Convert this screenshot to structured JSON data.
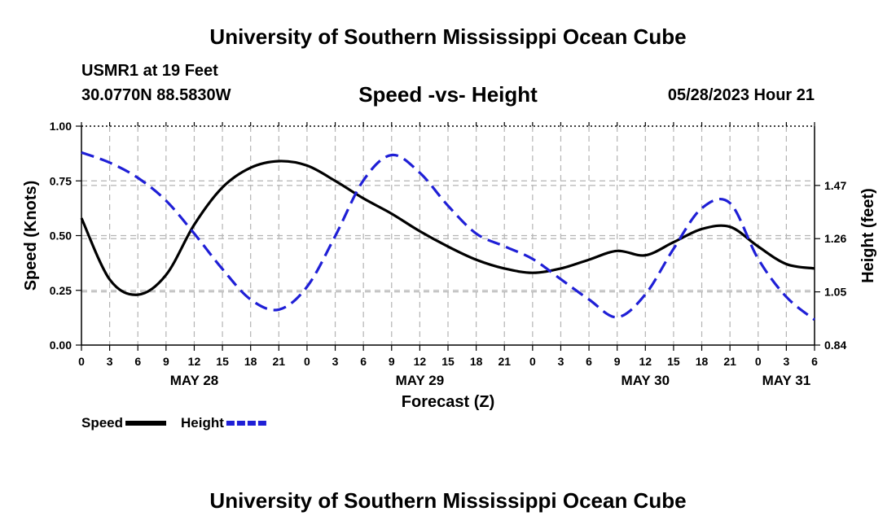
{
  "header": {
    "title": "University of Southern Mississippi Ocean Cube",
    "station": "USMR1 at 19 Feet",
    "coords": "30.0770N  88.5830W",
    "subtitle": "Speed -vs- Height",
    "datetime": "05/28/2023 Hour 21"
  },
  "footer": {
    "title": "University of Southern Mississippi Ocean Cube"
  },
  "chart_data": {
    "type": "line",
    "title": "Speed -vs- Height",
    "xlabel": "Forecast (Z)",
    "ylabel_left": "Speed (Knots)",
    "ylabel_right": "Height (feet)",
    "xlim": [
      0,
      78
    ],
    "ylim_left": [
      0,
      1
    ],
    "ylim_right": [
      0.84,
      1.704
    ],
    "x_ticks": [
      0,
      3,
      6,
      9,
      12,
      15,
      18,
      21,
      24,
      27,
      30,
      33,
      36,
      39,
      42,
      45,
      48,
      51,
      54,
      57,
      60,
      63,
      66,
      69,
      72,
      75,
      78
    ],
    "x_tick_labels": [
      "0",
      "3",
      "6",
      "9",
      "12",
      "15",
      "18",
      "21",
      "0",
      "3",
      "6",
      "9",
      "12",
      "15",
      "18",
      "21",
      "0",
      "3",
      "6",
      "9",
      "12",
      "15",
      "18",
      "21",
      "0",
      "3",
      "6"
    ],
    "date_labels": [
      {
        "label": "MAY 28",
        "x": 12
      },
      {
        "label": "MAY 29",
        "x": 36
      },
      {
        "label": "MAY 30",
        "x": 60
      },
      {
        "label": "MAY 31",
        "x": 75
      }
    ],
    "y_ticks_left": [
      0,
      0.25,
      0.5,
      0.75,
      1
    ],
    "y_tick_labels_left": [
      "0.00",
      "0.25",
      "0.50",
      "0.75",
      "1.00"
    ],
    "y_ticks_right": [
      0.84,
      1.05,
      1.26,
      1.47
    ],
    "y_tick_labels_right": [
      "0.84",
      "1.05",
      "1.26",
      "1.47"
    ],
    "grid": true,
    "legend_position": "bottom-left",
    "series": [
      {
        "name": "Speed",
        "axis": "left",
        "color": "#000000",
        "style": "solid",
        "x": [
          0,
          3,
          6,
          9,
          12,
          15,
          18,
          21,
          24,
          27,
          30,
          33,
          36,
          39,
          42,
          45,
          48,
          51,
          54,
          57,
          60,
          63,
          66,
          69,
          72,
          75,
          78
        ],
        "values": [
          0.58,
          0.3,
          0.23,
          0.32,
          0.55,
          0.72,
          0.81,
          0.84,
          0.82,
          0.75,
          0.67,
          0.6,
          0.52,
          0.45,
          0.39,
          0.35,
          0.33,
          0.35,
          0.39,
          0.43,
          0.41,
          0.47,
          0.53,
          0.54,
          0.45,
          0.37,
          0.35
        ]
      },
      {
        "name": "Height",
        "axis": "right",
        "color": "#1f1fd6",
        "style": "dashed",
        "x": [
          0,
          3,
          6,
          9,
          12,
          15,
          18,
          21,
          24,
          27,
          30,
          33,
          36,
          39,
          42,
          45,
          48,
          51,
          54,
          57,
          60,
          63,
          66,
          69,
          72,
          75,
          78
        ],
        "values": [
          1.6,
          1.56,
          1.5,
          1.41,
          1.28,
          1.14,
          1.02,
          0.98,
          1.07,
          1.27,
          1.49,
          1.59,
          1.52,
          1.39,
          1.28,
          1.23,
          1.18,
          1.1,
          1.02,
          0.95,
          1.04,
          1.22,
          1.38,
          1.4,
          1.18,
          1.03,
          0.94
        ]
      }
    ]
  }
}
